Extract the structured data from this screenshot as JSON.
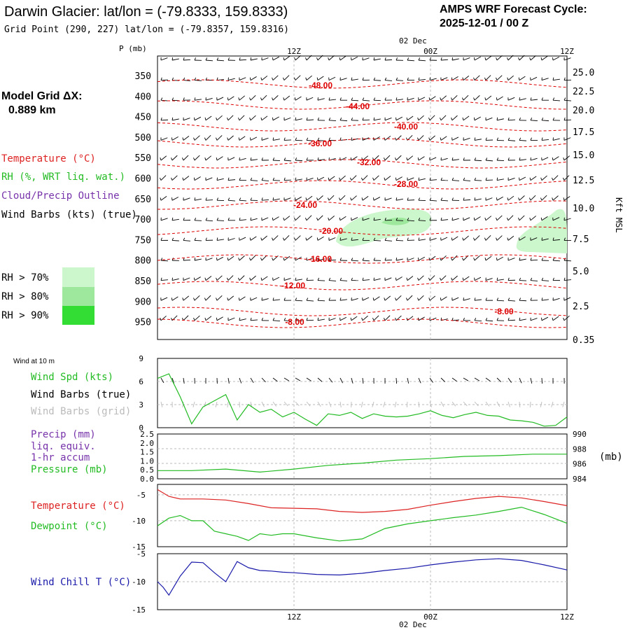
{
  "header": {
    "title": "Darwin Glacier:  lat/lon = (-79.8333, 159.8333)",
    "subtitle": "Grid Point (290, 227) lat/lon = (-79.8357, 159.8316)",
    "forecast_line1": "AMPS WRF Forecast Cycle:",
    "forecast_line2": "2025-12-01 / 00  Z"
  },
  "left_panel": {
    "model_grid_line1": "Model Grid ΔX:",
    "model_grid_line2": "0.889 km",
    "legend_temperature": "Temperature (°C)",
    "legend_rh": "RH (%, WRT liq. wat.)",
    "legend_cloud": "Cloud/Precip Outline",
    "legend_wind": "Wind Barbs (kts) (true)",
    "rh70": "RH > 70%",
    "rh80": "RH > 80%",
    "rh90": "RH > 90%",
    "colors": {
      "rh70": "#ccf7cc",
      "rh80": "#9ee89e",
      "rh90": "#33dd33"
    }
  },
  "time_axis": {
    "top_date": "02 Dec",
    "bottom_date": "02 Dec",
    "labels": [
      "12Z",
      "00Z",
      "12Z"
    ]
  },
  "chart_data": [
    {
      "type": "line",
      "id": "upper_air",
      "title": "",
      "ylabel": "P (mb)",
      "right_label": "Kft MSL",
      "y_ticks_left": [
        "350",
        "400",
        "450",
        "500",
        "550",
        "600",
        "650",
        "700",
        "750",
        "800",
        "850",
        "900",
        "950"
      ],
      "y_ticks_right": [
        "25.0",
        "22.5",
        "20.0",
        "17.5",
        "15.0",
        "12.5",
        "10.0",
        "7.5",
        "5.0",
        "2.5",
        "0.35"
      ],
      "isotherm_labels": [
        "-48.00",
        "-44.00",
        "-40.00",
        "-36.00",
        "-32.00",
        "-28.00",
        "-24.00",
        "-20.00",
        "-16.00",
        "-12.00",
        "-8.00",
        "-8.00"
      ],
      "isotherm_color": "#dd0000",
      "rh_color": "#9ee89e",
      "wind_barb_color": "#000000"
    },
    {
      "type": "line",
      "id": "wind10m",
      "title": "Wind at 10 m",
      "y_ticks": [
        "0",
        "3",
        "6",
        "9"
      ],
      "ylim": [
        0,
        9
      ],
      "legend": {
        "spd": "Wind Spd (kts)",
        "true": "Wind Barbs (true)",
        "grid": "Wind Barbs (grid)"
      },
      "series": [
        {
          "name": "Wind Spd (kts)",
          "color": "#22bb22",
          "x": [
            0,
            1,
            2,
            3,
            4,
            5,
            6,
            7,
            8,
            9,
            10,
            11,
            12,
            13,
            14,
            15,
            16,
            17,
            18,
            19,
            20,
            21,
            22,
            23,
            24,
            25,
            26,
            27,
            28,
            29,
            30,
            31,
            32,
            33,
            34,
            35,
            36
          ],
          "values": [
            6.4,
            7.0,
            4.0,
            0.5,
            2.7,
            3.5,
            4.3,
            1.0,
            3.0,
            2.0,
            2.4,
            1.4,
            2.0,
            1.1,
            0.3,
            1.8,
            1.6,
            2.0,
            1.2,
            1.8,
            1.5,
            1.4,
            1.5,
            1.8,
            2.2,
            1.6,
            1.3,
            1.7,
            2.0,
            1.6,
            1.5,
            1.0,
            0.9,
            0.7,
            0.2,
            0.3,
            1.4
          ]
        }
      ]
    },
    {
      "type": "line",
      "id": "precip_pressure",
      "legend": {
        "precip1": "Precip (mm)",
        "precip2": "liq. equiv.",
        "precip3": "1-hr accum",
        "pressure": "Pressure (mb)"
      },
      "y_ticks_left": [
        "0.0",
        "0.5",
        "1.0",
        "1.5",
        "2.0",
        "2.5"
      ],
      "y_ticks_right": [
        "984",
        "986",
        "988",
        "990"
      ],
      "right_unit": "(mb)",
      "ylim_right": [
        984,
        990
      ],
      "series": [
        {
          "name": "Pressure (mb)",
          "color": "#22bb22",
          "x": [
            0,
            3,
            6,
            9,
            12,
            15,
            18,
            21,
            24,
            27,
            30,
            33,
            36
          ],
          "values": [
            985.1,
            985.1,
            985.3,
            984.9,
            985.3,
            985.8,
            986.1,
            986.5,
            986.7,
            987.0,
            987.1,
            987.3,
            987.3
          ]
        }
      ]
    },
    {
      "type": "line",
      "id": "temp_dew",
      "y_ticks": [
        "-5",
        "-10",
        "-15"
      ],
      "ylim": [
        -15,
        -3
      ],
      "series": [
        {
          "name": "Temperature (°C)",
          "color": "#dd2222",
          "x": [
            0,
            1,
            2,
            4,
            6,
            8,
            10,
            12,
            14,
            16,
            18,
            20,
            22,
            24,
            26,
            28,
            30,
            32,
            34,
            36
          ],
          "values": [
            -4.0,
            -5.3,
            -5.8,
            -5.8,
            -6.0,
            -6.7,
            -7.5,
            -7.6,
            -7.7,
            -8.2,
            -8.4,
            -8.2,
            -7.8,
            -7.0,
            -6.3,
            -5.7,
            -5.3,
            -5.6,
            -6.3,
            -7.1
          ]
        },
        {
          "name": "Dewpoint (°C)",
          "color": "#22bb22",
          "x": [
            0,
            1,
            2,
            3,
            4,
            5,
            6,
            7,
            8,
            9,
            10,
            11,
            12,
            14,
            16,
            18,
            20,
            22,
            24,
            26,
            28,
            30,
            32,
            34,
            36
          ],
          "values": [
            -11,
            -9.5,
            -9.0,
            -10,
            -10,
            -12,
            -12.5,
            -13,
            -13.8,
            -12.5,
            -12.8,
            -12.5,
            -12.5,
            -13.3,
            -13.9,
            -13.5,
            -11.5,
            -10.6,
            -10.0,
            -9.4,
            -8.9,
            -8.2,
            -7.4,
            -8.8,
            -10.5
          ]
        }
      ]
    },
    {
      "type": "line",
      "id": "windchill",
      "y_ticks": [
        "-5",
        "-10",
        "-15"
      ],
      "ylim": [
        -15,
        -5
      ],
      "series": [
        {
          "name": "Wind Chill T (°C)",
          "color": "#1a1aaa",
          "x": [
            0,
            0.5,
            1,
            2,
            3,
            4,
            5,
            6,
            7,
            8,
            9,
            10,
            11,
            12,
            14,
            16,
            18,
            20,
            22,
            24,
            26,
            28,
            30,
            32,
            34,
            36
          ],
          "values": [
            -10,
            -11,
            -12.4,
            -9.0,
            -6.5,
            -6.6,
            -8.4,
            -10,
            -6.4,
            -7.5,
            -8,
            -8.1,
            -8.3,
            -8.4,
            -8.7,
            -8.8,
            -8.5,
            -8.0,
            -7.6,
            -7.0,
            -6.5,
            -6.1,
            -5.9,
            -6.2,
            -7.0,
            -7.9
          ]
        }
      ]
    }
  ]
}
